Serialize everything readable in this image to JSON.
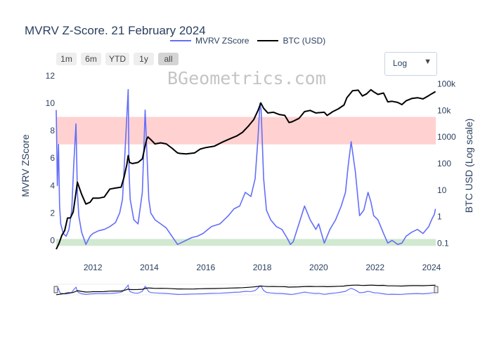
{
  "title": "MVRV Z-Score. 21 February 2024",
  "watermark": "BGeometrics.com",
  "legend": [
    {
      "name": "MVRV ZScore",
      "color": "#636efa"
    },
    {
      "name": "BTC (USD)",
      "color": "#000000"
    }
  ],
  "range_buttons": [
    {
      "label": "1m",
      "active": false
    },
    {
      "label": "6m",
      "active": false
    },
    {
      "label": "YTD",
      "active": false
    },
    {
      "label": "1y",
      "active": false
    },
    {
      "label": "all",
      "active": true
    }
  ],
  "scale_selector": {
    "value": "Log",
    "arrow": "▼"
  },
  "chart_data": {
    "type": "line",
    "xlabel": "",
    "x_range": [
      2010.7,
      2024.15
    ],
    "x_ticks": [
      2012,
      2014,
      2016,
      2018,
      2020,
      2022,
      2024
    ],
    "y_left": {
      "label": "MVRV ZScore",
      "range": [
        -0.8,
        12
      ],
      "ticks": [
        0,
        2,
        4,
        6,
        8,
        10,
        12
      ]
    },
    "y_right": {
      "label": "BTC USD (Log scale)",
      "scale": "log",
      "range": [
        0.05,
        200000
      ],
      "ticks": [
        {
          "v": 0.1,
          "t": "0.1"
        },
        {
          "v": 1,
          "t": "1"
        },
        {
          "v": 10,
          "t": "10"
        },
        {
          "v": 100,
          "t": "100"
        },
        {
          "v": 1000,
          "t": "1000"
        },
        {
          "v": 10000,
          "t": "10k"
        },
        {
          "v": 100000,
          "t": "100k"
        }
      ]
    },
    "bands": [
      {
        "name": "overvalued",
        "y0": 7,
        "y1": 9,
        "color": "#ffcccc"
      },
      {
        "name": "undervalued",
        "y0": -0.4,
        "y1": 0.1,
        "color": "#cce6cc"
      }
    ],
    "series": [
      {
        "name": "MVRV ZScore",
        "axis": "left",
        "color": "#636efa",
        "x": [
          2010.7,
          2010.74,
          2010.78,
          2010.82,
          2010.86,
          2010.95,
          2011.05,
          2011.15,
          2011.25,
          2011.32,
          2011.4,
          2011.45,
          2011.5,
          2011.6,
          2011.75,
          2011.9,
          2012.0,
          2012.2,
          2012.4,
          2012.6,
          2012.8,
          2012.95,
          2013.05,
          2013.15,
          2013.25,
          2013.28,
          2013.32,
          2013.45,
          2013.6,
          2013.75,
          2013.85,
          2013.92,
          2013.98,
          2014.05,
          2014.2,
          2014.4,
          2014.6,
          2014.8,
          2015.0,
          2015.1,
          2015.3,
          2015.5,
          2015.7,
          2015.9,
          2016.2,
          2016.5,
          2016.8,
          2017.0,
          2017.2,
          2017.4,
          2017.6,
          2017.75,
          2017.85,
          2017.92,
          2017.96,
          2018.05,
          2018.15,
          2018.3,
          2018.5,
          2018.7,
          2018.9,
          2019.0,
          2019.1,
          2019.3,
          2019.5,
          2019.7,
          2019.9,
          2020.0,
          2020.2,
          2020.4,
          2020.6,
          2020.8,
          2020.95,
          2021.05,
          2021.15,
          2021.3,
          2021.45,
          2021.6,
          2021.75,
          2021.85,
          2021.95,
          2022.1,
          2022.3,
          2022.45,
          2022.6,
          2022.8,
          2022.95,
          2023.1,
          2023.3,
          2023.5,
          2023.7,
          2023.9,
          2024.0,
          2024.1,
          2024.14
        ],
        "y": [
          9.5,
          4.0,
          7.0,
          2.5,
          1.2,
          0.5,
          0.3,
          0.8,
          2.2,
          5.5,
          8.5,
          3.5,
          1.8,
          0.6,
          -0.3,
          0.3,
          0.5,
          0.7,
          0.8,
          1.0,
          1.3,
          2.0,
          3.0,
          7.0,
          11.0,
          5.0,
          3.0,
          1.5,
          1.2,
          3.5,
          9.5,
          6.0,
          3.0,
          2.0,
          1.5,
          1.2,
          0.9,
          0.3,
          -0.3,
          -0.2,
          0.0,
          0.2,
          0.3,
          0.5,
          1.0,
          1.2,
          1.8,
          2.3,
          2.5,
          3.5,
          3.2,
          4.5,
          7.5,
          10.0,
          9.5,
          4.5,
          2.2,
          1.5,
          1.0,
          0.8,
          0.1,
          -0.3,
          -0.1,
          1.2,
          2.5,
          1.5,
          0.8,
          1.2,
          -0.2,
          0.8,
          1.5,
          2.5,
          3.5,
          5.5,
          7.2,
          5.0,
          1.8,
          2.2,
          3.5,
          2.8,
          1.8,
          1.5,
          0.5,
          -0.2,
          0.0,
          -0.3,
          -0.2,
          0.3,
          0.6,
          0.8,
          0.5,
          1.0,
          1.5,
          1.9,
          2.3
        ]
      },
      {
        "name": "BTC (USD)",
        "axis": "right",
        "color": "#000000",
        "x": [
          2010.7,
          2010.8,
          2010.9,
          2011.0,
          2011.1,
          2011.2,
          2011.3,
          2011.4,
          2011.45,
          2011.5,
          2011.6,
          2011.75,
          2011.9,
          2012.0,
          2012.2,
          2012.4,
          2012.6,
          2012.8,
          2013.0,
          2013.1,
          2013.2,
          2013.25,
          2013.3,
          2013.4,
          2013.6,
          2013.75,
          2013.9,
          2013.95,
          2014.05,
          2014.2,
          2014.4,
          2014.6,
          2014.8,
          2015.0,
          2015.1,
          2015.3,
          2015.6,
          2015.8,
          2016.0,
          2016.3,
          2016.6,
          2016.9,
          2017.1,
          2017.3,
          2017.5,
          2017.7,
          2017.85,
          2017.95,
          2018.05,
          2018.2,
          2018.4,
          2018.6,
          2018.8,
          2018.95,
          2019.05,
          2019.3,
          2019.5,
          2019.7,
          2019.9,
          2020.2,
          2020.3,
          2020.5,
          2020.7,
          2020.9,
          2021.0,
          2021.2,
          2021.4,
          2021.55,
          2021.7,
          2021.85,
          2021.95,
          2022.1,
          2022.3,
          2022.45,
          2022.6,
          2022.8,
          2022.95,
          2023.1,
          2023.3,
          2023.5,
          2023.7,
          2023.9,
          2024.0,
          2024.14
        ],
        "y": [
          0.06,
          0.1,
          0.2,
          0.3,
          0.9,
          0.9,
          1.5,
          8,
          20,
          14,
          7,
          3,
          3.5,
          5,
          5,
          5.5,
          11,
          12,
          13,
          30,
          90,
          200,
          110,
          100,
          110,
          150,
          800,
          1000,
          800,
          550,
          600,
          550,
          380,
          250,
          240,
          230,
          250,
          350,
          400,
          450,
          650,
          900,
          1100,
          1500,
          2500,
          4500,
          10000,
          19000,
          12000,
          8000,
          8500,
          7000,
          6500,
          3500,
          3700,
          5000,
          9000,
          10000,
          8000,
          8500,
          6500,
          9000,
          11500,
          16000,
          30000,
          55000,
          58000,
          35000,
          42000,
          60000,
          50000,
          40000,
          45000,
          21000,
          22000,
          20000,
          16500,
          23000,
          28000,
          30000,
          27000,
          36000,
          42000,
          51000
        ]
      }
    ]
  }
}
